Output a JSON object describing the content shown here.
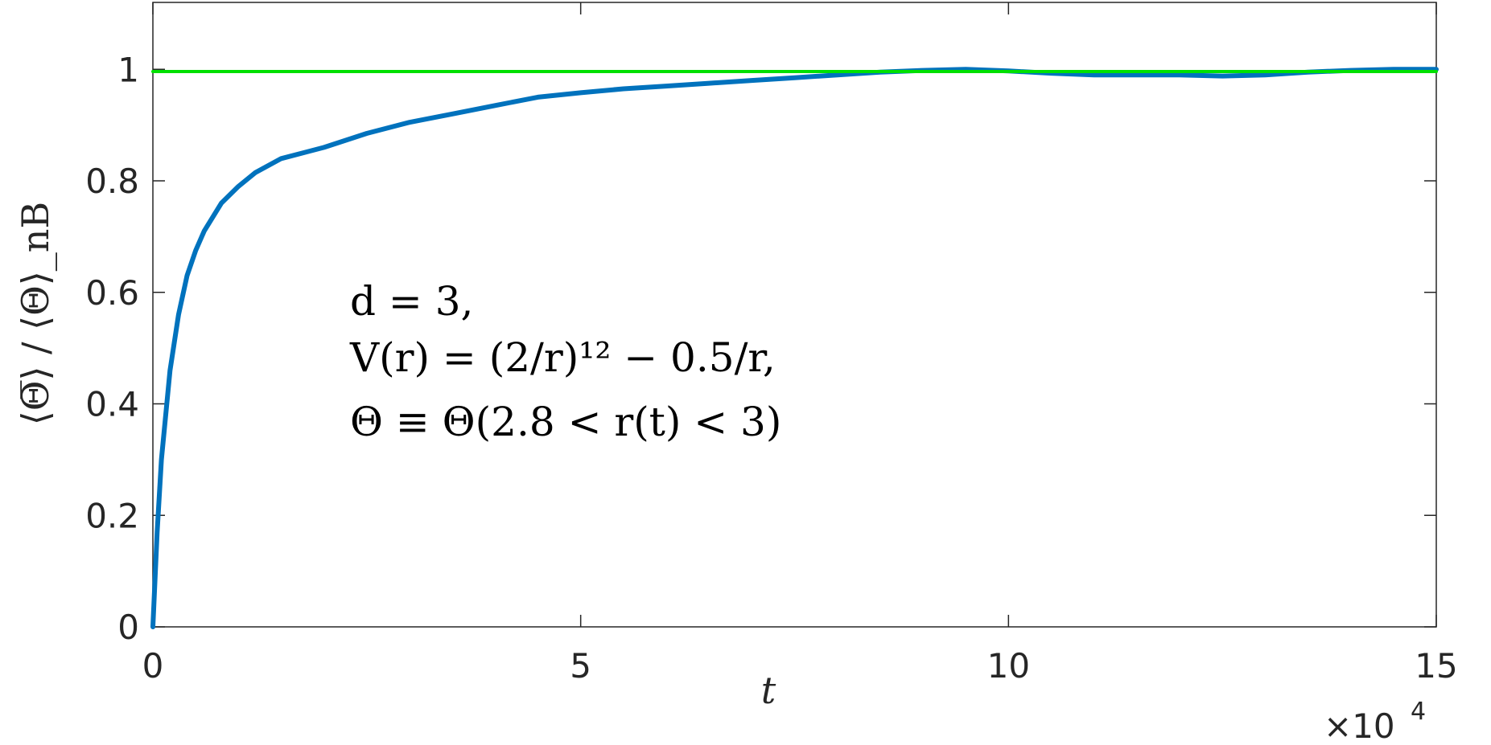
{
  "chart_data": {
    "type": "line",
    "xlabel": "t",
    "ylabel": "⟨Θ̅⟩ / ⟨Θ⟩_nB",
    "x_exponent_label": "×10",
    "x_exponent_power": "4",
    "xlim": [
      0,
      15
    ],
    "ylim": [
      0,
      1.12
    ],
    "x_ticks": [
      0,
      5,
      10,
      15
    ],
    "x_tick_labels": [
      "0",
      "5",
      "10",
      "15"
    ],
    "y_ticks": [
      0,
      0.2,
      0.4,
      0.6,
      0.8,
      1
    ],
    "y_tick_labels": [
      "0",
      "0.2",
      "0.4",
      "0.6",
      "0.8",
      "1"
    ],
    "grid": false,
    "annotation": [
      "d = 3,",
      "V(r) = (2/r)¹² − 0.5/r,",
      "Θ ≡ Θ(2.8 < r(t) < 3)"
    ],
    "series": [
      {
        "color": "#0072BD",
        "x": [
          0,
          0.05,
          0.1,
          0.2,
          0.3,
          0.4,
          0.5,
          0.6,
          0.8,
          1.0,
          1.2,
          1.5,
          2.0,
          2.5,
          3.0,
          3.5,
          4.0,
          4.5,
          5.0,
          5.5,
          6.0,
          6.5,
          7.0,
          7.5,
          8.0,
          8.5,
          9.0,
          9.5,
          10.0,
          10.5,
          11.0,
          11.5,
          12.0,
          12.5,
          13.0,
          13.5,
          14.0,
          14.5,
          15.0
        ],
        "y": [
          0,
          0.17,
          0.3,
          0.46,
          0.56,
          0.63,
          0.675,
          0.71,
          0.76,
          0.79,
          0.815,
          0.84,
          0.86,
          0.885,
          0.905,
          0.92,
          0.935,
          0.95,
          0.958,
          0.965,
          0.97,
          0.975,
          0.98,
          0.985,
          0.99,
          0.995,
          0.998,
          1.0,
          0.997,
          0.993,
          0.99,
          0.99,
          0.99,
          0.988,
          0.99,
          0.995,
          0.998,
          1.0,
          1.0
        ]
      },
      {
        "color": "#00E000",
        "x": [
          0,
          15
        ],
        "y": [
          0.996,
          0.996
        ]
      }
    ]
  }
}
